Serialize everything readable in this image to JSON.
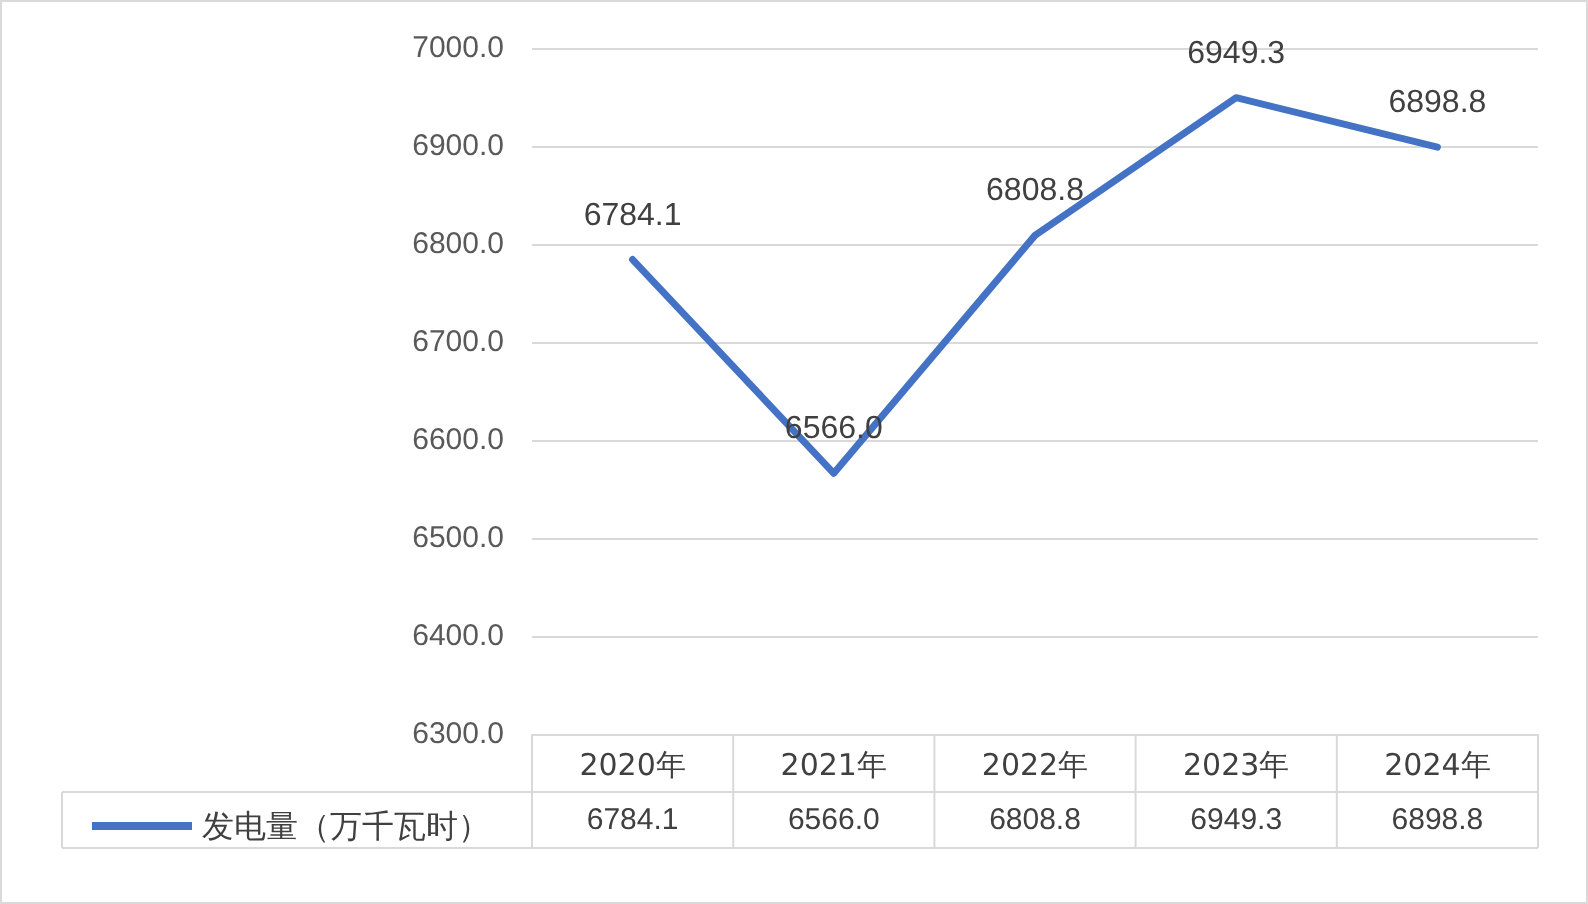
{
  "chart_data": {
    "type": "line",
    "categories": [
      "2020年",
      "2021年",
      "2022年",
      "2023年",
      "2024年"
    ],
    "series": [
      {
        "name": "发电量（万千瓦时）",
        "color": "#4472c4",
        "values": [
          6784.1,
          6566.0,
          6808.8,
          6949.3,
          6898.8
        ],
        "value_labels": [
          "6784.1",
          "6566.0",
          "6808.8",
          "6949.3",
          "6898.8"
        ]
      }
    ],
    "ylim": [
      6300,
      7000
    ],
    "yticks": [
      {
        "value": 6300,
        "label": "6300.0"
      },
      {
        "value": 6400,
        "label": "6400.0"
      },
      {
        "value": 6500,
        "label": "6500.0"
      },
      {
        "value": 6600,
        "label": "6600.0"
      },
      {
        "value": 6700,
        "label": "6700.0"
      },
      {
        "value": 6800,
        "label": "6800.0"
      },
      {
        "value": 6900,
        "label": "6900.0"
      },
      {
        "value": 7000,
        "label": "7000.0"
      }
    ],
    "grid": "y",
    "legend": "bottom left",
    "marker": "none",
    "line_style": "solid"
  }
}
